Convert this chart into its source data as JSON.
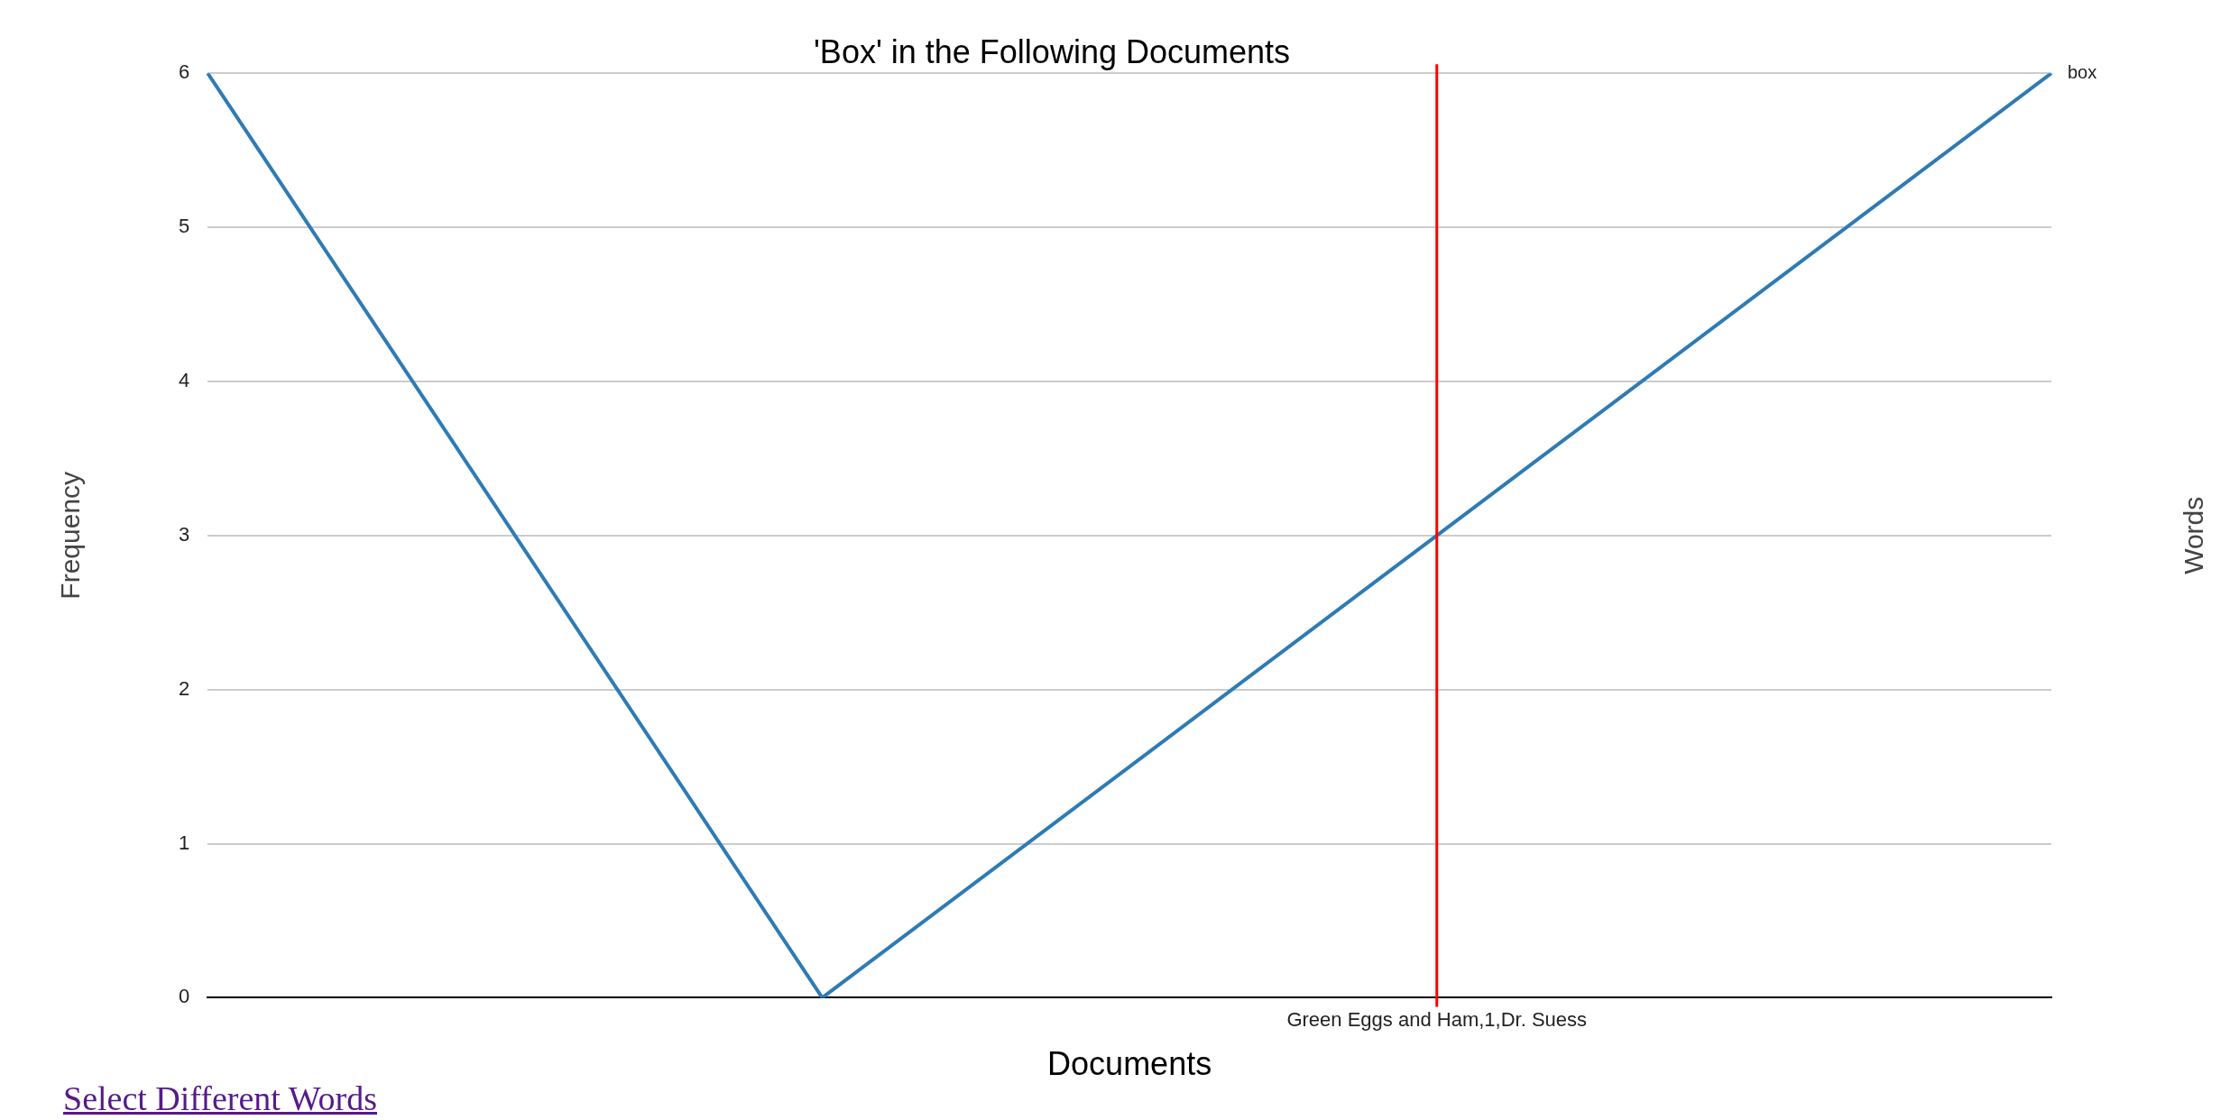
{
  "chart_data": {
    "type": "line",
    "title": "'Box' in the Following Documents",
    "xlabel": "Documents",
    "ylabel": "Frequency",
    "legend_title": "Words",
    "categories": [
      null,
      null,
      "Green Eggs and Ham,1,Dr. Suess",
      null
    ],
    "series": [
      {
        "name": "box",
        "color": "#2e7bb5",
        "values": [
          6,
          0,
          3,
          6
        ]
      }
    ],
    "ylim": [
      0,
      6
    ],
    "yticks": [
      0,
      1,
      2,
      3,
      4,
      5,
      6
    ],
    "grid": "y",
    "legend": "right",
    "marker": "none",
    "line_style": "solid",
    "ref_lines": [
      {
        "axis": "x",
        "value": "Green Eggs and Ham,1,Dr. Suess",
        "color": "#ff0000"
      }
    ],
    "annotations": [
      "Select Different Words"
    ]
  }
}
